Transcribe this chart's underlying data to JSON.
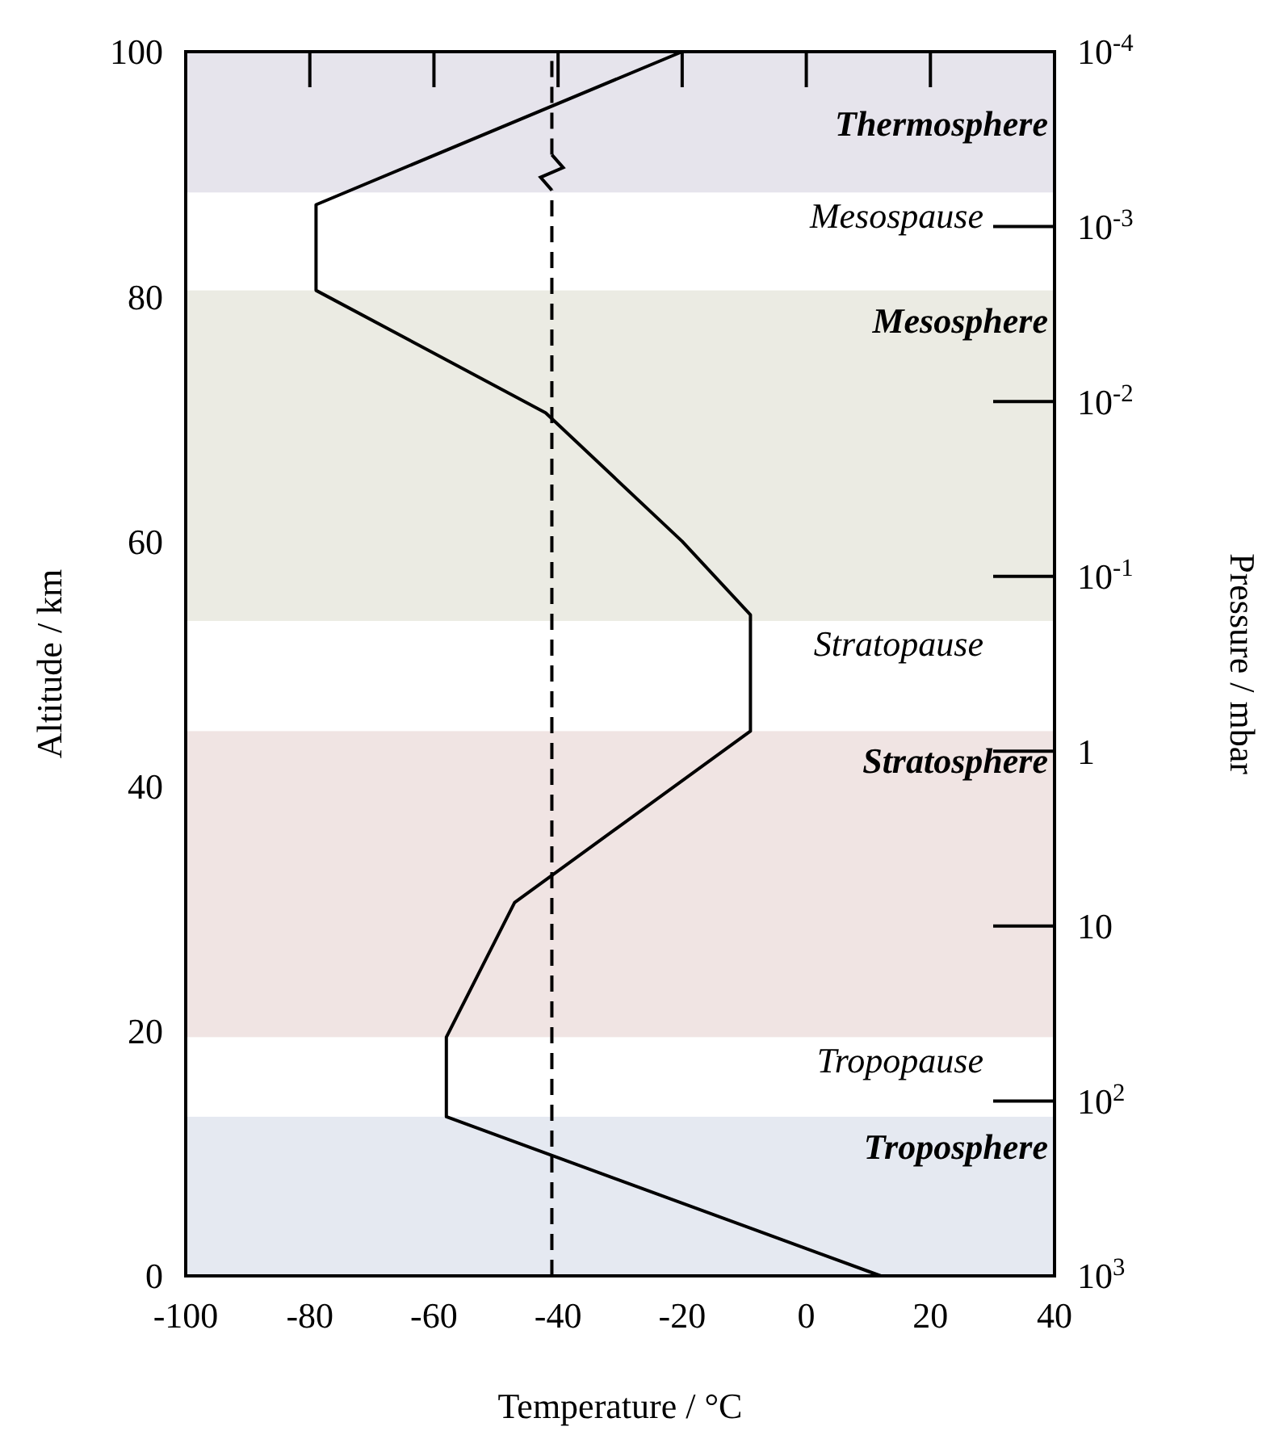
{
  "chart_data": {
    "type": "line",
    "xlabel": "Temperature / °C",
    "ylabel": "Altitude / km",
    "y2label": "Pressure / mbar",
    "series": [
      {
        "color": "#000000",
        "x": [
          12,
          -58,
          -58,
          -47,
          -9,
          -9,
          -20,
          -42,
          -79,
          -79,
          -20
        ],
        "values": [
          0,
          13,
          19.5,
          30.5,
          44.5,
          54,
          60,
          70.5,
          80.5,
          87.5,
          100
        ]
      }
    ],
    "xlim": [
      -100,
      40
    ],
    "xticks": [
      -100,
      -80,
      -60,
      -40,
      -20,
      0,
      20,
      40
    ],
    "ylim": [
      0,
      100
    ],
    "yticks": [
      0,
      20,
      40,
      60,
      80,
      100
    ],
    "log": "y2",
    "y2lim": [
      1000,
      0.0001
    ],
    "y2ticks": [
      {
        "value": 1000,
        "label": "10$^{3}$"
      },
      {
        "value": 100,
        "label": "10$^{2}$"
      },
      10,
      1,
      {
        "value": 0.1,
        "label": "10$^{-1}$"
      },
      {
        "value": 0.01,
        "label": "10$^{-2}$"
      },
      {
        "value": 0.001,
        "label": "10$^{-3}$"
      },
      {
        "value": 0.0001,
        "label": "10$^{-4}$"
      }
    ],
    "line_style": "solid",
    "marker": "none",
    "ref_lines": [
      {
        "axis": "x",
        "value": -41,
        "line_style": "dashed",
        "color": "#000000"
      }
    ],
    "bands": [
      {
        "axis": "y",
        "from": 0,
        "to": 13,
        "label": "Troposphere",
        "color": "#e5e9f1"
      },
      {
        "axis": "y",
        "from": 19.5,
        "to": 44.5,
        "label": "Stratosphere",
        "color": "#f0e4e3"
      },
      {
        "axis": "y",
        "from": 53.5,
        "to": 80.5,
        "label": "Mesosphere",
        "color": "#ebebe3"
      },
      {
        "axis": "y",
        "from": 88.5,
        "to": 100,
        "label": "Thermosphere",
        "color": "#e6e4ec"
      }
    ],
    "annotations": [
      "Tropopause",
      "Stratopause",
      "Mesospause"
    ]
  }
}
